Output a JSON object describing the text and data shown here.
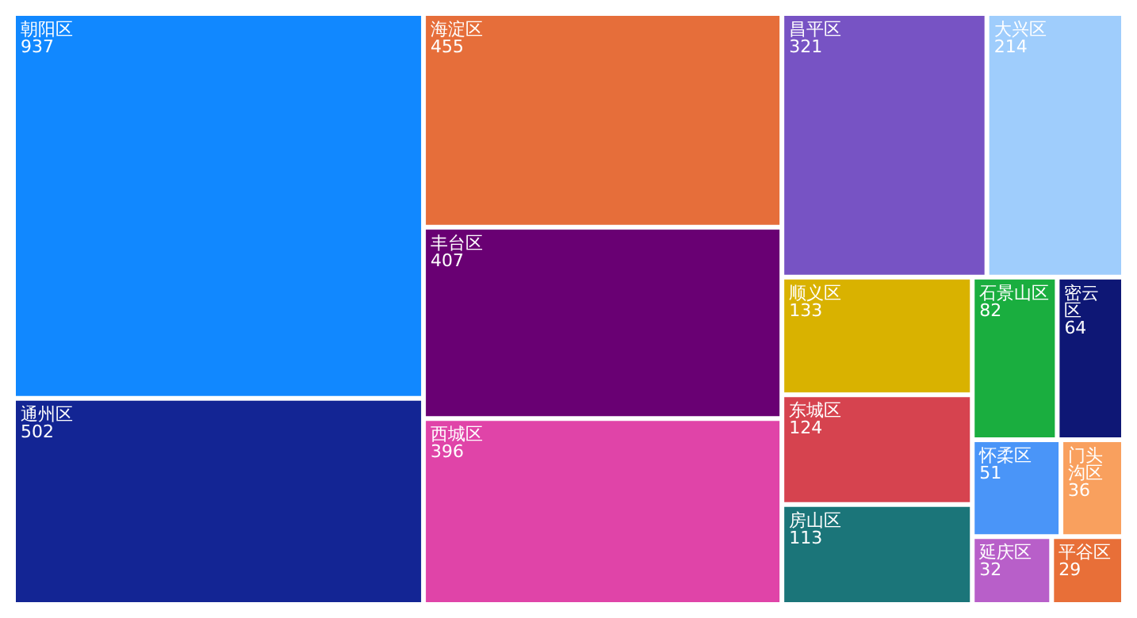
{
  "chart_data": {
    "type": "other",
    "data_labels": true,
    "categories": [
      "朝阳区",
      "海淀区",
      "通州区",
      "丰台区",
      "西城区",
      "昌平区",
      "大兴区",
      "顺义区",
      "东城区",
      "房山区",
      "石景山区",
      "密云区",
      "怀柔区",
      "门头沟区",
      "延庆区",
      "平谷区"
    ],
    "values": [
      937,
      455,
      502,
      407,
      396,
      321,
      214,
      133,
      124,
      113,
      82,
      64,
      51,
      36,
      32,
      29
    ],
    "colors": [
      "#1188ff",
      "#e66e3a",
      "#132594",
      "#690073",
      "#e044a8",
      "#7753c4",
      "#9fcdfc",
      "#d9b200",
      "#d6434f",
      "#1b7579",
      "#1aae3f",
      "#0e1775",
      "#4a95f8",
      "#f9a05e",
      "#b85fc9",
      "#e86f38"
    ]
  }
}
